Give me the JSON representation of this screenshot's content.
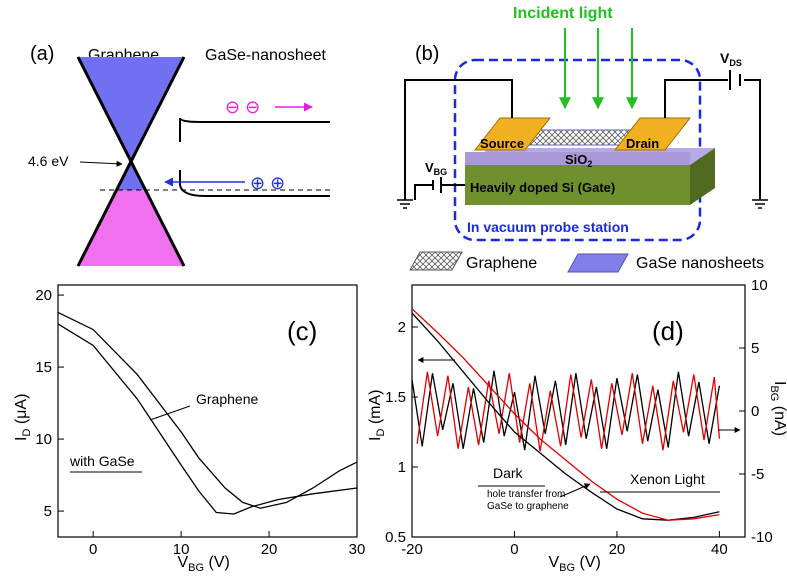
{
  "panel_a": {
    "label": "(a)",
    "graphene": "Graphene",
    "gase": "GaSe-nanosheet",
    "energy": "4.6 eV",
    "electrons": "⊖ ⊖",
    "holes": "⊕ ⊕"
  },
  "panel_b": {
    "label": "(b)",
    "incident": "Incident light",
    "vds": [
      "V",
      "DS"
    ],
    "vbg": [
      "V",
      "BG"
    ],
    "source": "Source",
    "drain": "Drain",
    "sio2": [
      "SiO",
      "2"
    ],
    "si": "Heavily doped Si (Gate)",
    "probe": "In vacuum probe station",
    "legend_graphene": "Graphene",
    "legend_gase": "GaSe nanosheets"
  },
  "chart_data": [
    {
      "type": "line",
      "label": "(c)",
      "xlabel": [
        "V",
        "BG",
        " (V)"
      ],
      "ylabel": [
        "I",
        "D",
        " (μA)"
      ],
      "xlim": [
        -4,
        30
      ],
      "xticks": [
        0,
        10,
        20,
        30
      ],
      "ylim": [
        3.2,
        20.7
      ],
      "yticks": [
        5,
        10,
        15,
        20
      ],
      "series": [
        {
          "name": "Graphene",
          "color": "#000000",
          "x": [
            -4,
            0,
            5,
            10,
            12,
            15,
            17,
            19,
            22,
            25,
            28,
            30
          ],
          "values": [
            18.8,
            17.6,
            14.5,
            10.5,
            8.7,
            6.6,
            5.6,
            5.2,
            5.6,
            6.6,
            7.8,
            8.4
          ]
        },
        {
          "name": "with GaSe",
          "color": "#000000",
          "x": [
            -4,
            0,
            5,
            10,
            12,
            14,
            16,
            18,
            21,
            25,
            30
          ],
          "values": [
            18.0,
            16.5,
            12.8,
            8.2,
            6.4,
            4.9,
            4.8,
            5.3,
            5.8,
            6.2,
            6.6
          ]
        }
      ]
    },
    {
      "type": "line",
      "label": "(d)",
      "xlabel": [
        "V",
        "BG",
        " (V)"
      ],
      "ylabel": [
        "I",
        "D",
        " (mA)"
      ],
      "y2label": [
        "I",
        "BG",
        " (nA)"
      ],
      "xlim": [
        -20,
        45
      ],
      "xticks": [
        -20,
        0,
        20,
        40
      ],
      "ylim": [
        0.5,
        2.3
      ],
      "yticks": [
        0.5,
        1.0,
        1.5,
        2.0
      ],
      "y2lim": [
        -10,
        10
      ],
      "y2ticks": [
        -10,
        -5,
        0,
        5,
        10
      ],
      "annotations": [
        "hole transfer from",
        "GaSe to graphene"
      ],
      "series": [
        {
          "axis": "y2",
          "color": "#000000",
          "x": [
            -20,
            -18,
            -16,
            -14,
            -12,
            -10,
            -8,
            -6,
            -4,
            -2,
            0,
            2,
            4,
            6,
            8,
            10,
            12,
            14,
            16,
            18,
            20,
            22,
            24,
            26,
            28,
            30,
            32,
            34,
            36,
            38,
            40
          ],
          "values": [
            2.5,
            -2.8,
            3,
            -1.5,
            2.2,
            -3,
            1.8,
            -2.5,
            3.2,
            -2,
            1.5,
            -3.1,
            2.8,
            -1.8,
            2.4,
            -2.7,
            3,
            -2.2,
            1.9,
            -3,
            2.6,
            -1.6,
            2.9,
            -2.4,
            1.7,
            -2.9,
            3.1,
            -2,
            2.3,
            -2.6,
            2
          ]
        },
        {
          "axis": "y2",
          "color": "#e00000",
          "x": [
            -19,
            -17,
            -15,
            -13,
            -11,
            -9,
            -7,
            -5,
            -3,
            -1,
            1,
            3,
            5,
            7,
            9,
            11,
            13,
            15,
            17,
            19,
            21,
            23,
            25,
            27,
            29,
            31,
            33,
            35,
            37,
            39,
            40
          ],
          "values": [
            -2.6,
            3.1,
            -2,
            2.8,
            -3,
            1.9,
            -2.7,
            2.4,
            -1.8,
            3,
            -2.5,
            2.2,
            -3.2,
            1.6,
            -2.8,
            2.9,
            -2.1,
            2.5,
            -3,
            2.2,
            -1.9,
            3,
            -2.6,
            2,
            -3.1,
            2.4,
            -1.7,
            2.9,
            -2.3,
            2.7,
            -2.2
          ]
        },
        {
          "name": "Dark",
          "color": "#000000",
          "x": [
            -20,
            -15,
            -10,
            -5,
            0,
            5,
            10,
            15,
            20,
            25,
            30,
            35,
            40
          ],
          "values": [
            2.1,
            1.9,
            1.68,
            1.46,
            1.25,
            1.1,
            0.95,
            0.82,
            0.7,
            0.63,
            0.62,
            0.64,
            0.68
          ]
        },
        {
          "name": "Xenon Light",
          "color": "#e00000",
          "x": [
            -20,
            -15,
            -10,
            -5,
            0,
            5,
            10,
            15,
            20,
            25,
            30,
            35,
            40
          ],
          "values": [
            2.13,
            1.96,
            1.78,
            1.58,
            1.38,
            1.2,
            1.05,
            0.9,
            0.77,
            0.67,
            0.62,
            0.63,
            0.66
          ]
        }
      ]
    }
  ]
}
